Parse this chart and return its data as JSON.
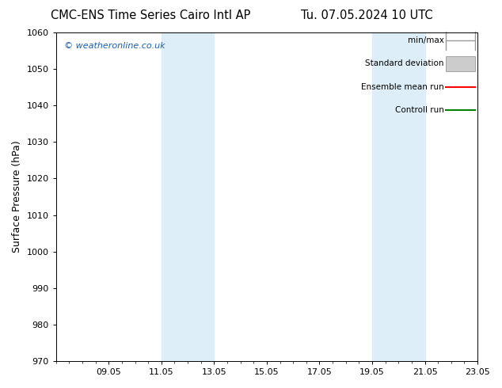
{
  "title_left": "CMC-ENS Time Series Cairo Intl AP",
  "title_right": "Tu. 07.05.2024 10 UTC",
  "ylabel": "Surface Pressure (hPa)",
  "ylim": [
    970,
    1060
  ],
  "yticks": [
    970,
    980,
    990,
    1000,
    1010,
    1020,
    1030,
    1040,
    1050,
    1060
  ],
  "xtick_labels": [
    "09.05",
    "11.05",
    "13.05",
    "15.05",
    "17.05",
    "19.05",
    "21.05",
    "23.05"
  ],
  "xtick_positions": [
    2,
    4,
    6,
    8,
    10,
    12,
    14,
    16
  ],
  "xlim": [
    0,
    16
  ],
  "shading_regions": [
    {
      "x_start": 4.0,
      "x_end": 6.0
    },
    {
      "x_start": 12.0,
      "x_end": 14.0
    }
  ],
  "shading_color": "#ddeef8",
  "watermark_text": "© weatheronline.co.uk",
  "watermark_color": "#1a5fa8",
  "legend_items": [
    {
      "label": "min/max",
      "color": "#999999",
      "style": "minmax"
    },
    {
      "label": "Standard deviation",
      "color": "#cccccc",
      "style": "stddev"
    },
    {
      "label": "Ensemble mean run",
      "color": "#ff0000",
      "style": "line"
    },
    {
      "label": "Controll run",
      "color": "#008000",
      "style": "line"
    }
  ],
  "bg_color": "#ffffff",
  "title_fontsize": 10.5,
  "ylabel_fontsize": 9,
  "tick_fontsize": 8,
  "legend_fontsize": 7.5,
  "watermark_fontsize": 8
}
